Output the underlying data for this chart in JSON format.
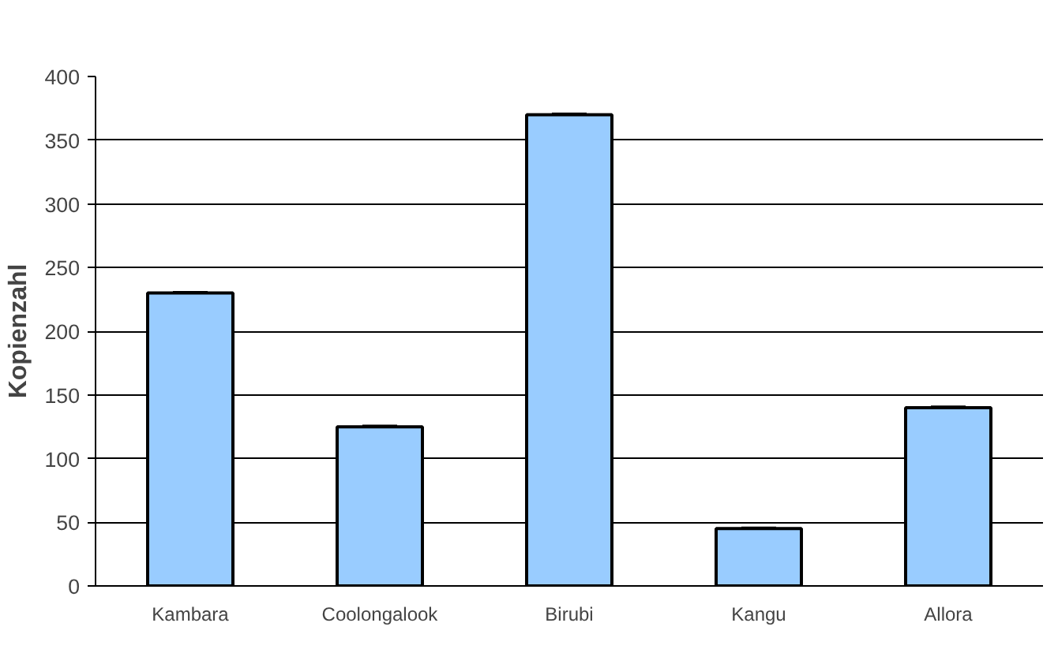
{
  "chart_data": {
    "type": "bar",
    "ylabel": "Kopienzahl",
    "categories": [
      "Kambara",
      "Coolongalook",
      "Birubi",
      "Kangu",
      "Allora"
    ],
    "values": [
      230,
      125,
      370,
      45,
      140
    ],
    "errors": [
      1,
      1,
      1,
      1,
      1
    ],
    "color": "#99ccff",
    "ylim": [
      0,
      400
    ],
    "yticks": [
      0,
      50,
      100,
      150,
      200,
      250,
      300,
      350,
      400
    ],
    "grid": "y"
  }
}
